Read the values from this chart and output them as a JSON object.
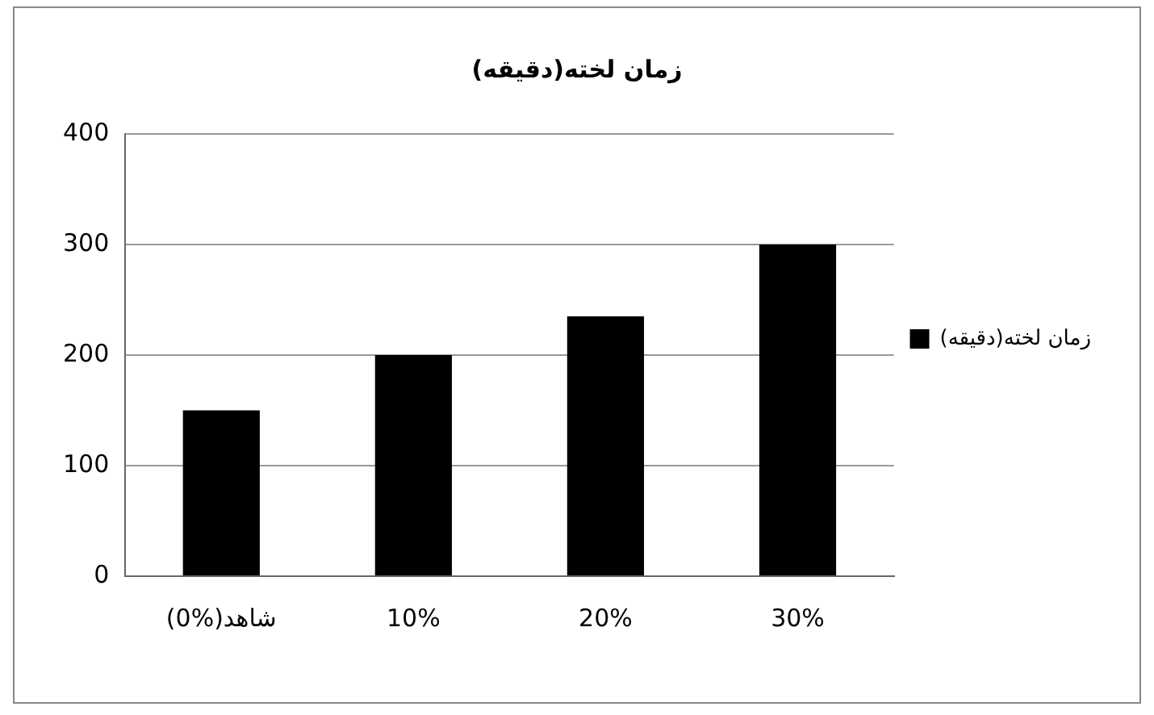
{
  "chart_data": {
    "type": "bar",
    "title": "(دقیقه)زمان لخته",
    "categories": [
      "(0%)شاهد",
      "10%",
      "20%",
      "30%"
    ],
    "series": [
      {
        "name": "زمان لخته(دقیقه)",
        "color": "#000000",
        "values": [
          150,
          200,
          235,
          300
        ]
      }
    ],
    "ylim": [
      0,
      400
    ],
    "yticks": [
      0,
      100,
      200,
      300,
      400
    ],
    "grid": "y",
    "legend": "right"
  }
}
